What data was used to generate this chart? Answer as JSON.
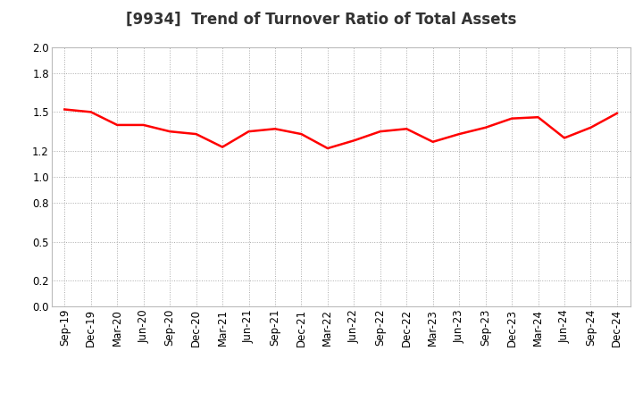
{
  "title": "[9934]  Trend of Turnover Ratio of Total Assets",
  "labels": [
    "Sep-19",
    "Dec-19",
    "Mar-20",
    "Jun-20",
    "Sep-20",
    "Dec-20",
    "Mar-21",
    "Jun-21",
    "Sep-21",
    "Dec-21",
    "Mar-22",
    "Jun-22",
    "Sep-22",
    "Dec-22",
    "Mar-23",
    "Jun-23",
    "Sep-23",
    "Dec-23",
    "Mar-24",
    "Jun-24",
    "Sep-24",
    "Dec-24"
  ],
  "values": [
    1.52,
    1.5,
    1.4,
    1.4,
    1.35,
    1.33,
    1.23,
    1.35,
    1.37,
    1.33,
    1.22,
    1.28,
    1.35,
    1.37,
    1.27,
    1.33,
    1.38,
    1.45,
    1.46,
    1.3,
    1.38,
    1.49
  ],
  "line_color": "#FF0000",
  "line_width": 1.8,
  "ylim": [
    0.0,
    2.0
  ],
  "yticks": [
    0.0,
    0.2,
    0.5,
    0.8,
    1.0,
    1.2,
    1.5,
    1.8,
    2.0
  ],
  "background_color": "#FFFFFF",
  "grid_color": "#AAAAAA",
  "title_fontsize": 12,
  "tick_fontsize": 8.5
}
